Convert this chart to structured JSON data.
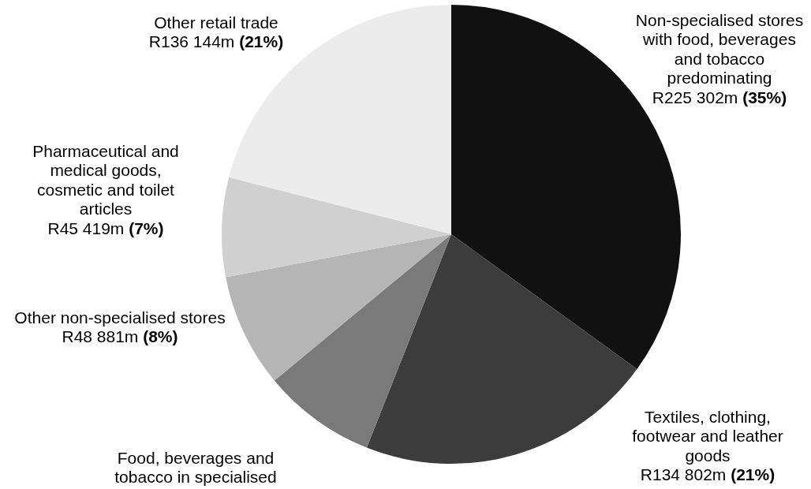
{
  "chart_data": {
    "type": "pie",
    "categories": [
      "Non-specialised stores with food, beverages and tobacco predominating",
      "Textiles, clothing, footwear and leather goods",
      "Food, beverages and tobacco in specialised",
      "Other non-specialised stores",
      "Pharmaceutical and medical goods, cosmetic and toilet articles",
      "Other retail trade"
    ],
    "values": [
      35,
      21,
      8,
      8,
      7,
      21
    ],
    "colors": [
      "#111111",
      "#3c3c3c",
      "#7a7a7a",
      "#b5b5b5",
      "#d0d0d0",
      "#ececec"
    ],
    "value_labels": [
      "R225 302m (35%)",
      "R134 802m (21%)",
      null,
      "R48 881m (8%)",
      "R45 419m (7%)",
      "R136 144m (21%)"
    ]
  }
}
